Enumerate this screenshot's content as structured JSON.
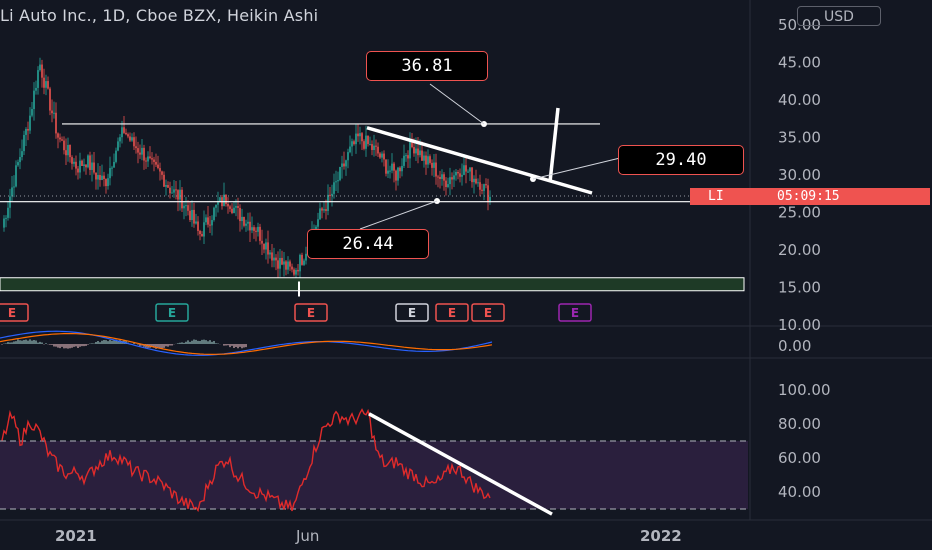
{
  "title": "Li Auto Inc., 1D, Cboe BZX, Heikin Ashi",
  "currency": "USD",
  "colors": {
    "up": "#26a69a",
    "down": "#ef5350",
    "bg": "#131722",
    "rsi": "#e02b2b",
    "rsi_band": "#2a1f3d"
  },
  "callouts": [
    {
      "label": "36.81"
    },
    {
      "label": "29.40"
    },
    {
      "label": "26.44"
    }
  ],
  "last_price_tag": {
    "symbol": "LI",
    "countdown": "05:09:15"
  },
  "earnings_markers": [
    "E",
    "E",
    "E",
    "E",
    "E",
    "E",
    "E"
  ],
  "time_axis": [
    "2021",
    "Jun",
    "2022"
  ],
  "chart_data": [
    {
      "type": "candlestick",
      "title": "Li Auto Inc., 1D, Cboe BZX, Heikin Ashi",
      "y_ticks": [
        50,
        45,
        40,
        35,
        30,
        25,
        20,
        15,
        10
      ],
      "y_tick_labels": [
        "50.00",
        "45.00",
        "40.00",
        "35.00",
        "30.00",
        "25.00",
        "20.00",
        "15.00",
        "10.00"
      ],
      "ylim": [
        10,
        50
      ],
      "close_path": [
        23,
        28,
        33,
        38,
        45,
        40,
        35,
        33,
        31,
        32,
        30,
        29,
        33,
        36,
        34,
        33,
        31,
        30,
        28,
        27,
        25,
        22,
        24,
        26,
        27,
        25,
        24,
        23,
        21,
        19,
        18,
        17,
        19,
        22,
        25,
        27,
        30,
        33,
        35,
        34,
        33,
        31,
        30,
        33,
        34,
        32,
        31,
        29,
        30,
        31,
        30,
        29,
        27
      ],
      "levels": {
        "resistance": 36.81,
        "support": 26.44,
        "breakout": 29.4,
        "box": 15.0
      }
    },
    {
      "type": "line",
      "name": "MACD",
      "y_ticks": [
        0
      ],
      "y_tick_labels": [
        "0.00"
      ]
    },
    {
      "type": "line",
      "name": "RSI",
      "y_ticks": [
        100,
        80,
        60,
        40
      ],
      "y_tick_labels": [
        "100.00",
        "80.00",
        "60.00",
        "40.00"
      ],
      "ylim": [
        25,
        105
      ],
      "bands": [
        70,
        30
      ],
      "values": [
        70,
        85,
        70,
        82,
        75,
        62,
        55,
        50,
        52,
        48,
        55,
        60,
        62,
        58,
        52,
        50,
        48,
        45,
        40,
        35,
        32,
        30,
        45,
        55,
        60,
        50,
        45,
        40,
        38,
        35,
        32,
        30,
        45,
        60,
        75,
        82,
        85,
        82,
        84,
        86,
        62,
        55,
        58,
        52,
        50,
        45,
        44,
        48,
        55,
        52,
        45,
        40,
        38
      ]
    }
  ]
}
